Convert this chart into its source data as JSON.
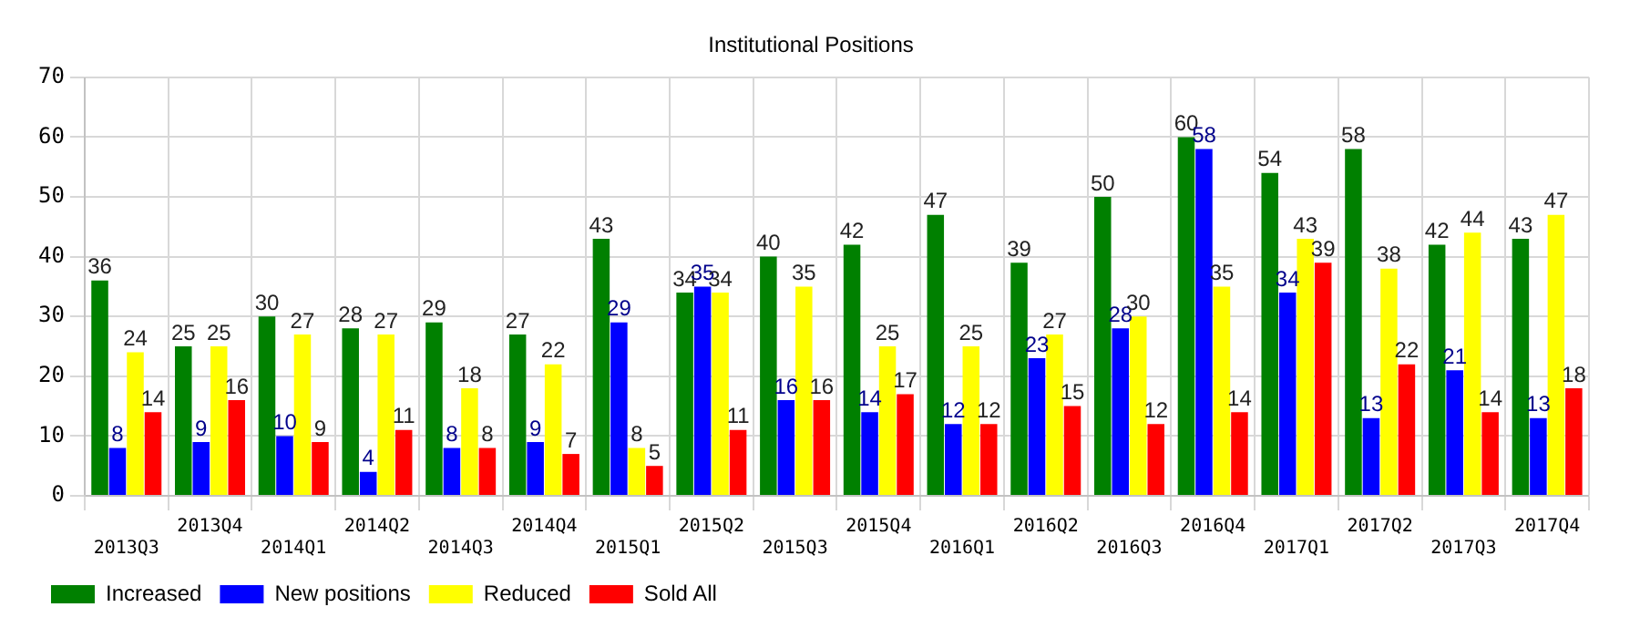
{
  "chart_data": {
    "type": "bar",
    "title": "Institutional Positions",
    "categories": [
      "2013Q3",
      "2013Q4",
      "2014Q1",
      "2014Q2",
      "2014Q3",
      "2014Q4",
      "2015Q1",
      "2015Q2",
      "2015Q3",
      "2015Q4",
      "2016Q1",
      "2016Q2",
      "2016Q3",
      "2016Q4",
      "2017Q1",
      "2017Q2",
      "2017Q3",
      "2017Q4"
    ],
    "series": [
      {
        "name": "Increased",
        "color": "#008000",
        "values": [
          36,
          25,
          30,
          28,
          29,
          27,
          43,
          34,
          40,
          42,
          47,
          39,
          50,
          60,
          54,
          58,
          42,
          43
        ]
      },
      {
        "name": "New positions",
        "color": "#0000ff",
        "values": [
          8,
          9,
          10,
          4,
          8,
          9,
          29,
          35,
          16,
          14,
          12,
          23,
          28,
          58,
          34,
          13,
          21,
          13
        ]
      },
      {
        "name": "Reduced",
        "color": "#ffff00",
        "values": [
          24,
          25,
          27,
          27,
          18,
          22,
          8,
          34,
          35,
          25,
          25,
          27,
          30,
          35,
          43,
          38,
          44,
          47
        ]
      },
      {
        "name": "Sold All",
        "color": "#ff0000",
        "values": [
          14,
          16,
          9,
          11,
          8,
          7,
          5,
          11,
          16,
          17,
          12,
          15,
          12,
          14,
          39,
          22,
          14,
          18
        ]
      }
    ],
    "ylim": [
      0,
      70
    ],
    "yticks": [
      0,
      10,
      20,
      30,
      40,
      50,
      60,
      70
    ],
    "grid": true,
    "legend": "bottom left",
    "data_labels": true
  }
}
